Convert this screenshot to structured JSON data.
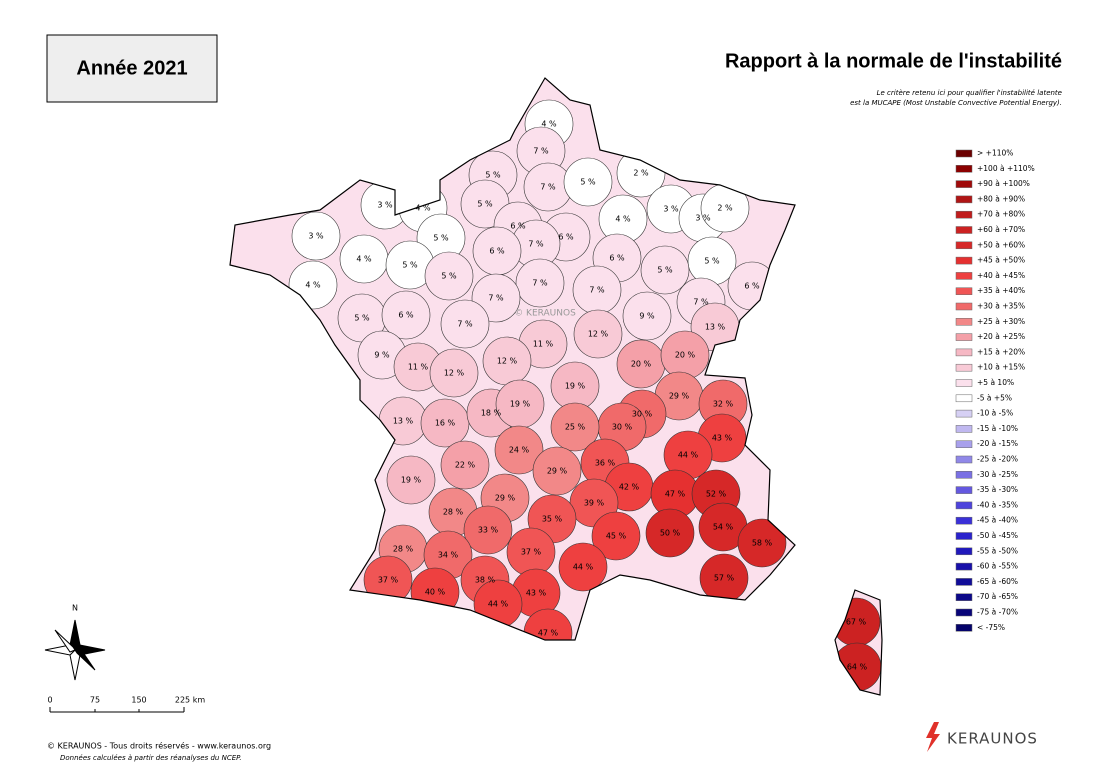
{
  "header": {
    "year": "Année 2021",
    "title": "Rapport à la normale de l'instabilité",
    "note": [
      "Le critère retenu ici pour qualifier l'instabilité latente",
      "est la MUCAPE (Most Unstable Convective Potential Energy)."
    ]
  },
  "legend": [
    {
      "label": "> +110%",
      "color": "#6b0000"
    },
    {
      "label": "+100 à +110%",
      "color": "#8b0000"
    },
    {
      "label": "+90 à +100%",
      "color": "#a00a0a"
    },
    {
      "label": "+80 à +90%",
      "color": "#b01515"
    },
    {
      "label": "+70 à +80%",
      "color": "#c01c1c"
    },
    {
      "label": "+60 à +70%",
      "color": "#cc2222"
    },
    {
      "label": "+50 à +60%",
      "color": "#d62828"
    },
    {
      "label": "+45 à +50%",
      "color": "#e53030"
    },
    {
      "label": "+40 à +45%",
      "color": "#ee4040"
    },
    {
      "label": "+35 à +40%",
      "color": "#f05555"
    },
    {
      "label": "+30 à +35%",
      "color": "#f06a6a"
    },
    {
      "label": "+25 à +30%",
      "color": "#f28888"
    },
    {
      "label": "+20 à +25%",
      "color": "#f4a0a8"
    },
    {
      "label": "+15 à +20%",
      "color": "#f6b8c4"
    },
    {
      "label": "+10 à +15%",
      "color": "#f8cad6"
    },
    {
      "label": "+5 à 10%",
      "color": "#fbe0ec"
    },
    {
      "label": "-5 à +5%",
      "color": "#ffffff"
    },
    {
      "label": "-10 à -5%",
      "color": "#d6d0f4"
    },
    {
      "label": "-15 à -10%",
      "color": "#c0b8f0"
    },
    {
      "label": "-20 à -15%",
      "color": "#a8a0ec"
    },
    {
      "label": "-25 à -20%",
      "color": "#9088e8"
    },
    {
      "label": "-30 à -25%",
      "color": "#7a70e4"
    },
    {
      "label": "-35 à -30%",
      "color": "#6458e0"
    },
    {
      "label": "-40 à -35%",
      "color": "#4e44dc"
    },
    {
      "label": "-45 à -40%",
      "color": "#3a30d8"
    },
    {
      "label": "-50 à -45%",
      "color": "#2a22cc"
    },
    {
      "label": "-55 à -50%",
      "color": "#2018bc"
    },
    {
      "label": "-60 à -55%",
      "color": "#1810aa"
    },
    {
      "label": "-65 à -60%",
      "color": "#100c98"
    },
    {
      "label": "-70 à -65%",
      "color": "#0c0888"
    },
    {
      "label": "-75 à -70%",
      "color": "#080478"
    },
    {
      "label": "< -75%",
      "color": "#04026a"
    }
  ],
  "departments": [
    "4 %",
    "7 %",
    "5 %",
    "7 %",
    "5 %",
    "2 %",
    "3 %",
    "4 %",
    "5 %",
    "3 %",
    "3 %",
    "2 %",
    "4 %",
    "3 %",
    "6 %",
    "6 %",
    "7 %",
    "5 %",
    "6 %",
    "4 %",
    "5 %",
    "6 %",
    "5 %",
    "5 %",
    "4 %",
    "5 %",
    "7 %",
    "7 %",
    "6 %",
    "7 %",
    "7 %",
    "5 %",
    "6 %",
    "7 %",
    "9 %",
    "13 %",
    "11 %",
    "12 %",
    "9 %",
    "11 %",
    "12 %",
    "12 %",
    "20 %",
    "20 %",
    "19 %",
    "29 %",
    "13 %",
    "16 %",
    "18 %",
    "19 %",
    "32 %",
    "30 %",
    "30 %",
    "25 %",
    "43 %",
    "24 %",
    "44 %",
    "36 %",
    "22 %",
    "29 %",
    "19 %",
    "42 %",
    "47 %",
    "52 %",
    "39 %",
    "29 %",
    "28 %",
    "35 %",
    "54 %",
    "45 %",
    "50 %",
    "33 %",
    "58 %",
    "28 %",
    "34 %",
    "37 %",
    "44 %",
    "37 %",
    "57 %",
    "38 %",
    "40 %",
    "43 %",
    "44 %",
    "47 %",
    "67 %",
    "64 %"
  ],
  "compass": "N",
  "scale": [
    "0",
    "75",
    "150",
    "225 km"
  ],
  "watermark": "© KERAUNOS",
  "footer": {
    "copyright": "© KERAUNOS - Tous droits réservés - www.keraunos.org",
    "source": "Données calculées à partir des réanalyses du NCEP.",
    "logo": "KERAUNOS"
  }
}
